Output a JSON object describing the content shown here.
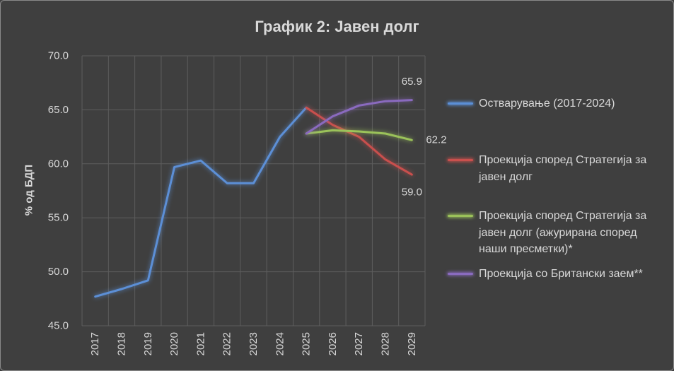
{
  "chart_data": {
    "type": "line",
    "title": "График 2: Јавен долг",
    "xlabel": "",
    "ylabel": "% од БДП",
    "ylim": [
      45,
      70
    ],
    "yticks": [
      "45.0",
      "50.0",
      "55.0",
      "60.0",
      "65.0",
      "70.0"
    ],
    "categories": [
      "2017",
      "2018",
      "2019",
      "2020",
      "2021",
      "2022",
      "2023",
      "2024",
      "2025",
      "2026",
      "2027",
      "2028",
      "2029"
    ],
    "grid": true,
    "legend": "right",
    "series": [
      {
        "name": "Остварување (2017-2024)",
        "color": "#5b8fd6",
        "values": [
          47.7,
          48.4,
          49.2,
          59.7,
          60.3,
          58.2,
          58.2,
          62.5,
          65.2,
          null,
          null,
          null,
          null
        ]
      },
      {
        "name": "Проекција според Стратегија за јавен долг",
        "color": "#c9504d",
        "values": [
          null,
          null,
          null,
          null,
          null,
          null,
          null,
          null,
          65.2,
          63.6,
          62.5,
          60.4,
          59.0
        ],
        "data_label": {
          "category": "2029",
          "position": "below"
        }
      },
      {
        "name": "Проекција според Стратегија за јавен долг (ажурирана според наши пресметки)*",
        "color": "#9bc25a",
        "values": [
          null,
          null,
          null,
          null,
          null,
          null,
          null,
          null,
          62.8,
          63.1,
          63.0,
          62.8,
          62.2
        ],
        "data_label": {
          "category": "2029",
          "position": "right"
        }
      },
      {
        "name": "Проекција со Британски заем**",
        "color": "#8a6bbf",
        "values": [
          null,
          null,
          null,
          null,
          null,
          null,
          null,
          null,
          62.8,
          64.4,
          65.4,
          65.8,
          65.9
        ],
        "data_label": {
          "category": "2029",
          "position": "above"
        }
      }
    ]
  }
}
